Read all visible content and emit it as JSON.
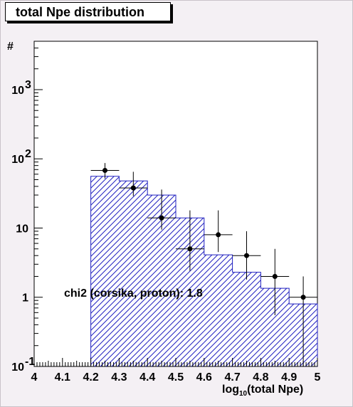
{
  "title": "total Npe distribution",
  "chart_data": {
    "type": "histogram",
    "title": "total Npe distribution",
    "xlabel": "log_{10}(total Npe)",
    "xlabel_main": "log",
    "xlabel_sub": "10",
    "xlabel_rest": "(total Npe)",
    "ylabel": "#",
    "xlim": [
      4.0,
      5.0
    ],
    "ylim": [
      0.1,
      5000
    ],
    "yscale": "log",
    "x_ticks": [
      "4",
      "4.1",
      "4.2",
      "4.3",
      "4.4",
      "4.5",
      "4.6",
      "4.7",
      "4.8",
      "4.9",
      "5"
    ],
    "y_ticks": [
      {
        "value": 0.1,
        "base": "10",
        "exp": "-1"
      },
      {
        "value": 1,
        "base": "1",
        "exp": ""
      },
      {
        "value": 10,
        "base": "10",
        "exp": ""
      },
      {
        "value": 100,
        "base": "10",
        "exp": "2"
      },
      {
        "value": 1000,
        "base": "10",
        "exp": "3"
      }
    ],
    "histogram": {
      "name": "corsika, proton",
      "color": "#2020c0",
      "bin_edges": [
        4.2,
        4.3,
        4.4,
        4.5,
        4.6,
        4.7,
        4.8,
        4.9,
        5.0
      ],
      "values": [
        56,
        48,
        30,
        14,
        4.1,
        2.3,
        1.35,
        0.8
      ]
    },
    "data_points": {
      "color": "#000000",
      "x": [
        4.25,
        4.35,
        4.45,
        4.55,
        4.65,
        4.75,
        4.85,
        4.95
      ],
      "y": [
        68,
        38,
        14,
        5,
        8,
        4,
        2,
        1
      ],
      "yerr_low": [
        16,
        9,
        4.5,
        2.6,
        3.5,
        2.2,
        1.45,
        0.9
      ],
      "yerr_high": [
        19,
        27,
        22,
        13,
        10,
        5,
        3,
        1
      ],
      "xerr": 0.05
    },
    "annotation": "chi2 (corsika, proton): 1.8"
  }
}
